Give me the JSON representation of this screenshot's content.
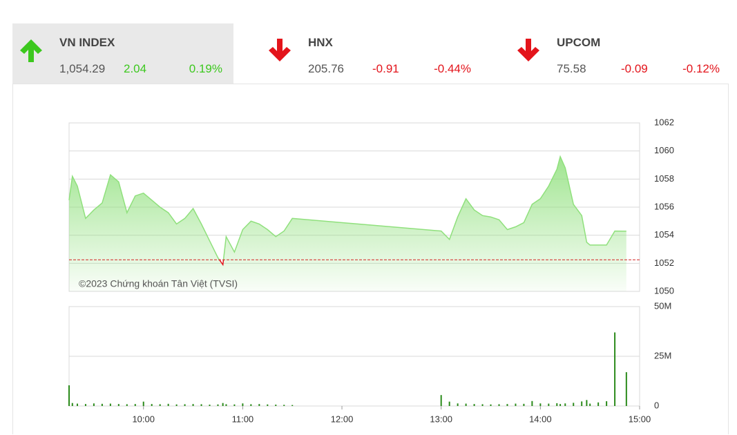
{
  "header": {
    "selected_index": 0,
    "colors": {
      "up": "#3cc81e",
      "down": "#e3141b",
      "selected_background": "#e9e9e9"
    },
    "indices": [
      {
        "name": "VN INDEX",
        "value": "1,054.29",
        "change": "2.04",
        "percent": "0.19%",
        "direction": "up"
      },
      {
        "name": "HNX",
        "value": "205.76",
        "change": "-0.91",
        "percent": "-0.44%",
        "direction": "down"
      },
      {
        "name": "UPCOM",
        "value": "75.58",
        "change": "-0.09",
        "percent": "-0.12%",
        "direction": "down"
      }
    ]
  },
  "chart_data": [
    {
      "type": "area",
      "color": "#8fe07c",
      "below_reference_color": "#e3141b",
      "reference": 1052.25,
      "reference_color": "#d42020",
      "annotation": "©2023 Chứng khoán Tân Việt (TVSI)",
      "xlim": [
        "09:15",
        "15:00"
      ],
      "ylim": [
        1050,
        1062
      ],
      "yticks": [
        1050,
        1052,
        1054,
        1056,
        1058,
        1060,
        1062
      ],
      "grid": true,
      "x": [
        "09:15",
        "09:17",
        "09:20",
        "09:25",
        "09:30",
        "09:35",
        "09:40",
        "09:45",
        "09:50",
        "09:55",
        "10:00",
        "10:05",
        "10:10",
        "10:15",
        "10:20",
        "10:25",
        "10:30",
        "10:35",
        "10:40",
        "10:45",
        "10:48",
        "10:50",
        "10:55",
        "11:00",
        "11:05",
        "11:10",
        "11:15",
        "11:20",
        "11:25",
        "11:30",
        "13:00",
        "13:05",
        "13:10",
        "13:15",
        "13:20",
        "13:25",
        "13:30",
        "13:35",
        "13:40",
        "13:45",
        "13:50",
        "13:55",
        "14:00",
        "14:05",
        "14:10",
        "14:12",
        "14:15",
        "14:20",
        "14:25",
        "14:28",
        "14:30",
        "14:35",
        "14:40",
        "14:45",
        "14:50",
        "14:52"
      ],
      "values": [
        1056.5,
        1058.2,
        1057.5,
        1055.2,
        1055.8,
        1056.3,
        1058.3,
        1057.8,
        1055.6,
        1056.8,
        1057.0,
        1056.5,
        1056.0,
        1055.6,
        1054.8,
        1055.2,
        1055.9,
        1054.8,
        1053.6,
        1052.4,
        1051.9,
        1053.9,
        1052.8,
        1054.4,
        1055.0,
        1054.8,
        1054.4,
        1053.9,
        1054.3,
        1055.2,
        1054.3,
        1053.7,
        1055.3,
        1056.6,
        1055.8,
        1055.4,
        1055.3,
        1055.1,
        1054.4,
        1054.6,
        1054.9,
        1056.2,
        1056.6,
        1057.5,
        1058.7,
        1059.6,
        1058.8,
        1056.2,
        1055.4,
        1053.5,
        1053.3,
        1053.3,
        1053.3,
        1054.3,
        1054.29,
        1054.29
      ]
    },
    {
      "type": "bar",
      "color": "#2a8a1a",
      "xlim": [
        "09:15",
        "15:00"
      ],
      "xticks": [
        "10:00",
        "11:00",
        "12:00",
        "13:00",
        "14:00",
        "15:00"
      ],
      "ylim": [
        0,
        50000000
      ],
      "yticks": [
        0,
        {
          "value": 25000000,
          "label": "25M"
        },
        {
          "value": 50000000,
          "label": "50M"
        }
      ],
      "grid": true,
      "x": [
        "09:15",
        "09:17",
        "09:20",
        "09:25",
        "09:30",
        "09:35",
        "09:40",
        "09:45",
        "09:50",
        "09:55",
        "10:00",
        "10:05",
        "10:10",
        "10:15",
        "10:20",
        "10:25",
        "10:30",
        "10:35",
        "10:40",
        "10:45",
        "10:48",
        "10:50",
        "10:55",
        "11:00",
        "11:05",
        "11:10",
        "11:15",
        "11:20",
        "11:25",
        "11:30",
        "13:00",
        "13:05",
        "13:10",
        "13:15",
        "13:20",
        "13:25",
        "13:30",
        "13:35",
        "13:40",
        "13:45",
        "13:50",
        "13:55",
        "14:00",
        "14:05",
        "14:10",
        "14:12",
        "14:15",
        "14:20",
        "14:25",
        "14:28",
        "14:30",
        "14:35",
        "14:40",
        "14:45",
        "14:50",
        "14:52"
      ],
      "values": [
        10400000,
        1500000,
        1200000,
        1000000,
        1300000,
        1100000,
        1200000,
        1000000,
        900000,
        1000000,
        2200000,
        1000000,
        900000,
        1100000,
        800000,
        900000,
        1000000,
        900000,
        700000,
        800000,
        1500000,
        900000,
        800000,
        1300000,
        900000,
        1000000,
        800000,
        700000,
        600000,
        500000,
        5500000,
        2200000,
        1300000,
        1200000,
        1000000,
        900000,
        800000,
        900000,
        1000000,
        1200000,
        1100000,
        2500000,
        1300000,
        1200000,
        1400000,
        1000000,
        1300000,
        1600000,
        2300000,
        3000000,
        1200000,
        1800000,
        2400000,
        37000000,
        0,
        17000000
      ]
    }
  ]
}
